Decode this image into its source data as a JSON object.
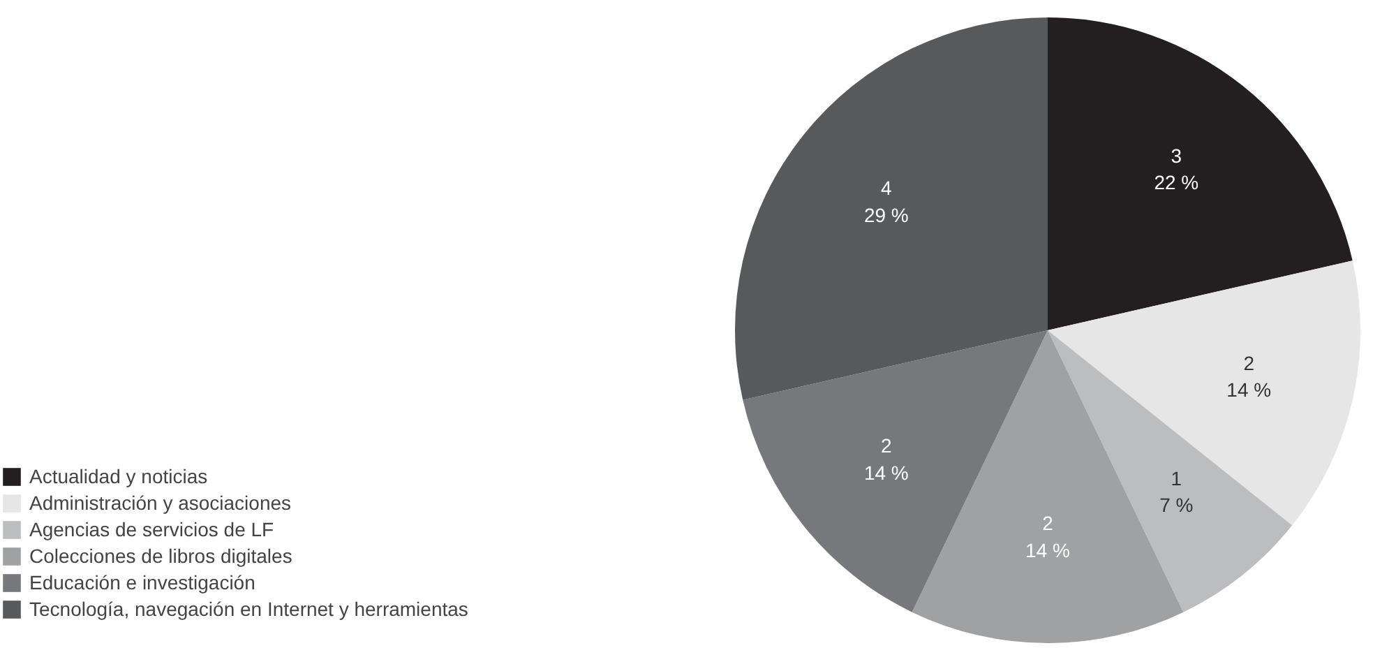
{
  "chart_data": {
    "type": "pie",
    "categories": [
      "Actualidad y noticias",
      "Administración y asociaciones",
      "Agencias de servicios de LF",
      "Colecciones de libros digitales",
      "Educación e investigación",
      "Tecnología, navegación en Internet y herramientas"
    ],
    "values": [
      3,
      2,
      1,
      2,
      2,
      4
    ],
    "colors": [
      "#231f20",
      "#e6e6e7",
      "#bcbdbf",
      "#a0a1a3",
      "#77787b",
      "#58595b"
    ],
    "value_labels": [
      "3\n22 %",
      "2\n14 %",
      "1\n7 %",
      "2\n14 %",
      "2\n14 %",
      "4\n29 %"
    ],
    "legend": "left"
  }
}
